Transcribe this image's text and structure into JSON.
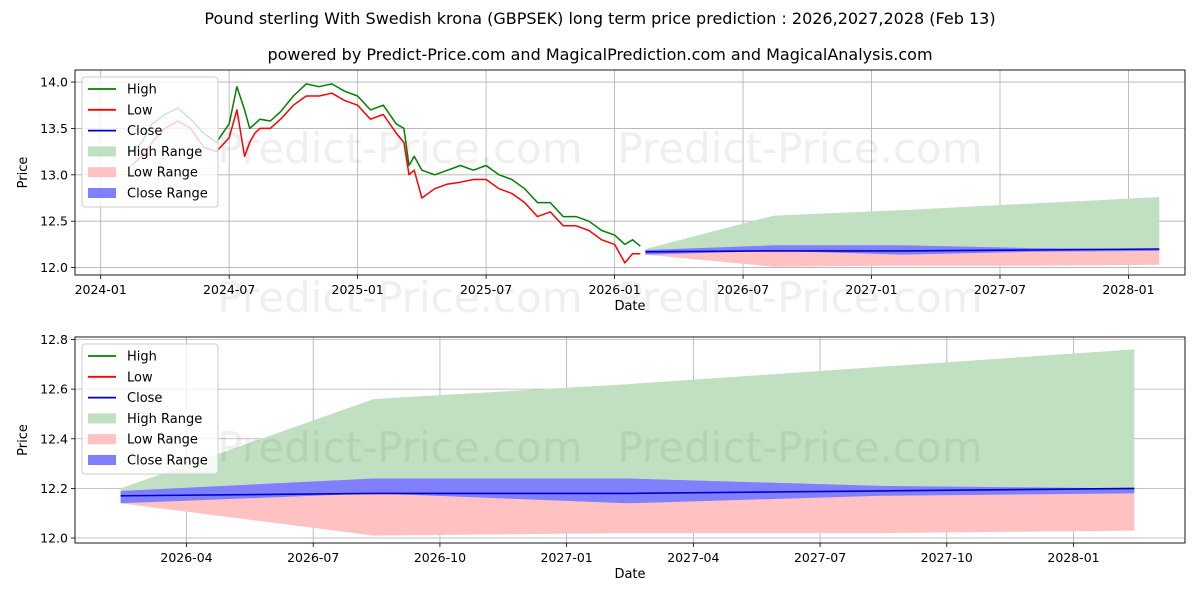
{
  "title": "Pound sterling With Swedish krona (GBPSEK) long term price prediction : 2026,2027,2028 (Feb 13)",
  "subtitle": "powered by Predict-Price.com and MagicalPrediction.com and MagicalAnalysis.com",
  "watermark": "Predict-Price.com",
  "colors": {
    "high": "#008000",
    "low": "#ff0000",
    "close": "#0000cc",
    "high_range": "#c1e0c1",
    "low_range": "#ffc1c1",
    "close_range": "#7f7fff",
    "grid": "#b0b0b0"
  },
  "chart_data": [
    {
      "type": "line",
      "name": "overview",
      "xlabel": "Date",
      "ylabel": "Price",
      "xlim": [
        2023.9,
        2028.22
      ],
      "ylim": [
        11.92,
        14.13
      ],
      "grid": true,
      "legend_placement": "top-left",
      "x_ticks": [
        {
          "value": 2024.0,
          "label": "2024-01"
        },
        {
          "value": 2024.5,
          "label": "2024-07"
        },
        {
          "value": 2025.0,
          "label": "2025-01"
        },
        {
          "value": 2025.5,
          "label": "2025-07"
        },
        {
          "value": 2026.0,
          "label": "2026-01"
        },
        {
          "value": 2026.5,
          "label": "2026-07"
        },
        {
          "value": 2027.0,
          "label": "2027-01"
        },
        {
          "value": 2027.5,
          "label": "2027-07"
        },
        {
          "value": 2028.0,
          "label": "2028-01"
        }
      ],
      "y_ticks": [
        {
          "value": 12.0,
          "label": "12.0"
        },
        {
          "value": 12.5,
          "label": "12.5"
        },
        {
          "value": 13.0,
          "label": "13.0"
        },
        {
          "value": 13.5,
          "label": "13.5"
        },
        {
          "value": 14.0,
          "label": "14.0"
        }
      ],
      "history": {
        "x": [
          2024.12,
          2024.16,
          2024.2,
          2024.25,
          2024.3,
          2024.35,
          2024.4,
          2024.45,
          2024.5,
          2024.53,
          2024.56,
          2024.58,
          2024.6,
          2024.62,
          2024.66,
          2024.7,
          2024.75,
          2024.8,
          2024.85,
          2024.9,
          2024.95,
          2025.0,
          2025.05,
          2025.1,
          2025.15,
          2025.18,
          2025.2,
          2025.22,
          2025.25,
          2025.3,
          2025.35,
          2025.4,
          2025.45,
          2025.5,
          2025.55,
          2025.6,
          2025.65,
          2025.7,
          2025.75,
          2025.8,
          2025.85,
          2025.9,
          2025.95,
          2026.0,
          2026.04,
          2026.07,
          2026.1
        ],
        "high": [
          13.25,
          13.35,
          13.55,
          13.65,
          13.72,
          13.6,
          13.45,
          13.35,
          13.55,
          13.95,
          13.7,
          13.5,
          13.55,
          13.6,
          13.58,
          13.68,
          13.85,
          13.98,
          13.95,
          13.98,
          13.9,
          13.85,
          13.7,
          13.75,
          13.55,
          13.5,
          13.1,
          13.2,
          13.05,
          13.0,
          13.05,
          13.1,
          13.05,
          13.1,
          13.0,
          12.95,
          12.85,
          12.7,
          12.7,
          12.55,
          12.55,
          12.5,
          12.4,
          12.35,
          12.25,
          12.3,
          12.23
        ],
        "low": [
          13.1,
          13.2,
          13.35,
          13.5,
          13.58,
          13.5,
          13.3,
          13.25,
          13.4,
          13.7,
          13.2,
          13.35,
          13.45,
          13.5,
          13.5,
          13.6,
          13.75,
          13.85,
          13.85,
          13.88,
          13.8,
          13.75,
          13.6,
          13.65,
          13.45,
          13.35,
          13.0,
          13.05,
          12.75,
          12.85,
          12.9,
          12.92,
          12.95,
          12.95,
          12.85,
          12.8,
          12.7,
          12.55,
          12.6,
          12.45,
          12.45,
          12.4,
          12.3,
          12.25,
          12.05,
          12.15,
          12.15
        ]
      },
      "forecast": {
        "x": [
          2026.12,
          2026.62,
          2027.12,
          2027.62,
          2028.12
        ],
        "high_upper": [
          12.2,
          12.56,
          12.62,
          12.69,
          12.76
        ],
        "high_lower": [
          12.17,
          12.2,
          12.2,
          12.2,
          12.2
        ],
        "low_upper": [
          12.17,
          12.18,
          12.19,
          12.19,
          12.2
        ],
        "low_lower": [
          12.14,
          12.01,
          12.02,
          12.02,
          12.03
        ],
        "close_upper": [
          12.19,
          12.24,
          12.24,
          12.21,
          12.2
        ],
        "close_lower": [
          12.14,
          12.18,
          12.14,
          12.17,
          12.18
        ],
        "close": [
          12.17,
          12.18,
          12.18,
          12.19,
          12.2
        ]
      }
    },
    {
      "type": "area",
      "name": "forecast_detail",
      "xlabel": "Date",
      "ylabel": "Price",
      "xlim": [
        2026.03,
        2028.22
      ],
      "ylim": [
        11.98,
        12.81
      ],
      "grid": true,
      "legend_placement": "top-left",
      "x_ticks": [
        {
          "value": 2026.25,
          "label": "2026-04"
        },
        {
          "value": 2026.5,
          "label": "2026-07"
        },
        {
          "value": 2026.75,
          "label": "2026-10"
        },
        {
          "value": 2027.0,
          "label": "2027-01"
        },
        {
          "value": 2027.25,
          "label": "2027-04"
        },
        {
          "value": 2027.5,
          "label": "2027-07"
        },
        {
          "value": 2027.75,
          "label": "2027-10"
        },
        {
          "value": 2028.0,
          "label": "2028-01"
        }
      ],
      "y_ticks": [
        {
          "value": 12.0,
          "label": "12.0"
        },
        {
          "value": 12.2,
          "label": "12.2"
        },
        {
          "value": 12.4,
          "label": "12.4"
        },
        {
          "value": 12.6,
          "label": "12.6"
        },
        {
          "value": 12.8,
          "label": "12.8"
        }
      ],
      "forecast": {
        "x": [
          2026.12,
          2026.62,
          2027.12,
          2027.62,
          2028.12
        ],
        "high_upper": [
          12.2,
          12.56,
          12.62,
          12.69,
          12.76
        ],
        "high_lower": [
          12.17,
          12.2,
          12.2,
          12.2,
          12.2
        ],
        "low_upper": [
          12.17,
          12.18,
          12.19,
          12.19,
          12.2
        ],
        "low_lower": [
          12.14,
          12.01,
          12.02,
          12.02,
          12.03
        ],
        "close_upper": [
          12.19,
          12.24,
          12.24,
          12.21,
          12.2
        ],
        "close_lower": [
          12.14,
          12.18,
          12.14,
          12.17,
          12.18
        ],
        "close": [
          12.17,
          12.18,
          12.18,
          12.19,
          12.2
        ]
      }
    }
  ],
  "legend": [
    {
      "key": "high",
      "label": "High",
      "kind": "line"
    },
    {
      "key": "low",
      "label": "Low",
      "kind": "line"
    },
    {
      "key": "close",
      "label": "Close",
      "kind": "line"
    },
    {
      "key": "high_range",
      "label": "High Range",
      "kind": "patch"
    },
    {
      "key": "low_range",
      "label": "Low Range",
      "kind": "patch"
    },
    {
      "key": "close_range",
      "label": "Close Range",
      "kind": "patch"
    }
  ]
}
